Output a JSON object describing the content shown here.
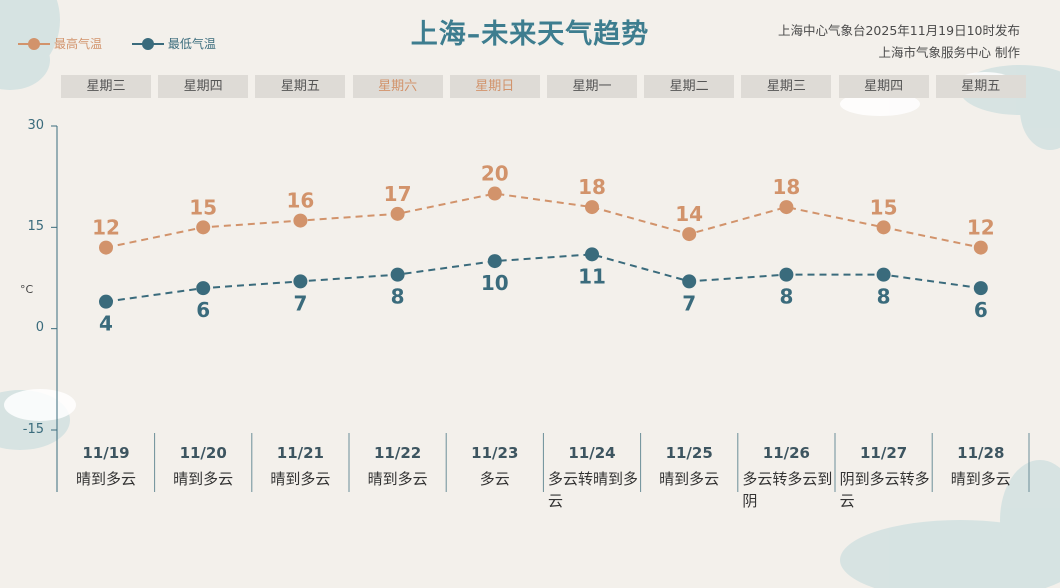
{
  "header": {
    "title": "上海–未来天气趋势",
    "issuer_line1": "上海中心气象台2025年11月19日10时发布",
    "issuer_line2": "上海市气象服务中心 制作"
  },
  "legend": {
    "high_label": "最高气温",
    "low_label": "最低气温"
  },
  "colors": {
    "high": "#d2936b",
    "low": "#3a6b7c",
    "weekend": "#d2936b"
  },
  "axis": {
    "unit": "°C",
    "ticks": [
      "30",
      "15",
      "0",
      "-15"
    ]
  },
  "chart_data": {
    "type": "line",
    "categories": [
      "11/19",
      "11/20",
      "11/21",
      "11/22",
      "11/23",
      "11/24",
      "11/25",
      "11/26",
      "11/27",
      "11/28"
    ],
    "weekdays": [
      "星期三",
      "星期四",
      "星期五",
      "星期六",
      "星期日",
      "星期一",
      "星期二",
      "星期三",
      "星期四",
      "星期五"
    ],
    "weekend": [
      false,
      false,
      false,
      true,
      true,
      false,
      false,
      false,
      false,
      false
    ],
    "weather": [
      "晴到多云",
      "晴到多云",
      "晴到多云",
      "晴到多云",
      "多云",
      "多云转晴到多云",
      "晴到多云",
      "多云转多云到阴",
      "阴到多云转多云",
      "晴到多云"
    ],
    "series": [
      {
        "name": "最高气温",
        "values": [
          12,
          15,
          16,
          17,
          20,
          18,
          14,
          18,
          15,
          12
        ]
      },
      {
        "name": "最低气温",
        "values": [
          4,
          6,
          7,
          8,
          10,
          11,
          7,
          8,
          8,
          6
        ]
      }
    ],
    "ylim": [
      -15,
      30
    ],
    "grid": false,
    "legend_position": "top-left"
  }
}
